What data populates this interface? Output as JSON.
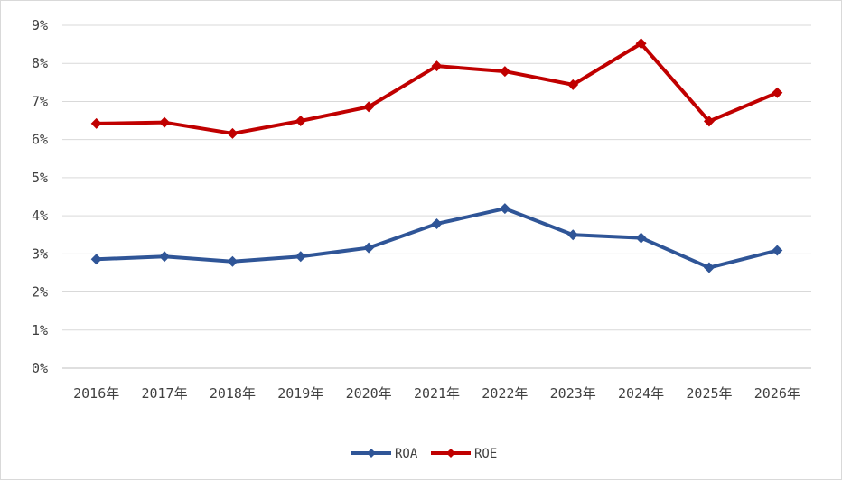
{
  "chart_data": {
    "type": "line",
    "title": "",
    "xlabel": "",
    "ylabel": "",
    "categories": [
      "2016年",
      "2017年",
      "2018年",
      "2019年",
      "2020年",
      "2021年",
      "2022年",
      "2023年",
      "2024年",
      "2025年",
      "2026年"
    ],
    "y_ticks": [
      "0%",
      "1%",
      "2%",
      "3%",
      "4%",
      "5%",
      "6%",
      "7%",
      "8%",
      "9%"
    ],
    "ylim": [
      0,
      9
    ],
    "grid": true,
    "legend_position": "bottom",
    "series": [
      {
        "name": "ROA",
        "color": "#2f5597",
        "marker": "diamond",
        "values": [
          2.86,
          2.93,
          2.8,
          2.93,
          3.16,
          3.79,
          4.19,
          3.5,
          3.42,
          2.64,
          3.09
        ]
      },
      {
        "name": "ROE",
        "color": "#c00000",
        "marker": "diamond",
        "values": [
          6.42,
          6.45,
          6.16,
          6.49,
          6.86,
          7.93,
          7.79,
          7.44,
          8.52,
          6.48,
          7.23
        ]
      }
    ]
  }
}
